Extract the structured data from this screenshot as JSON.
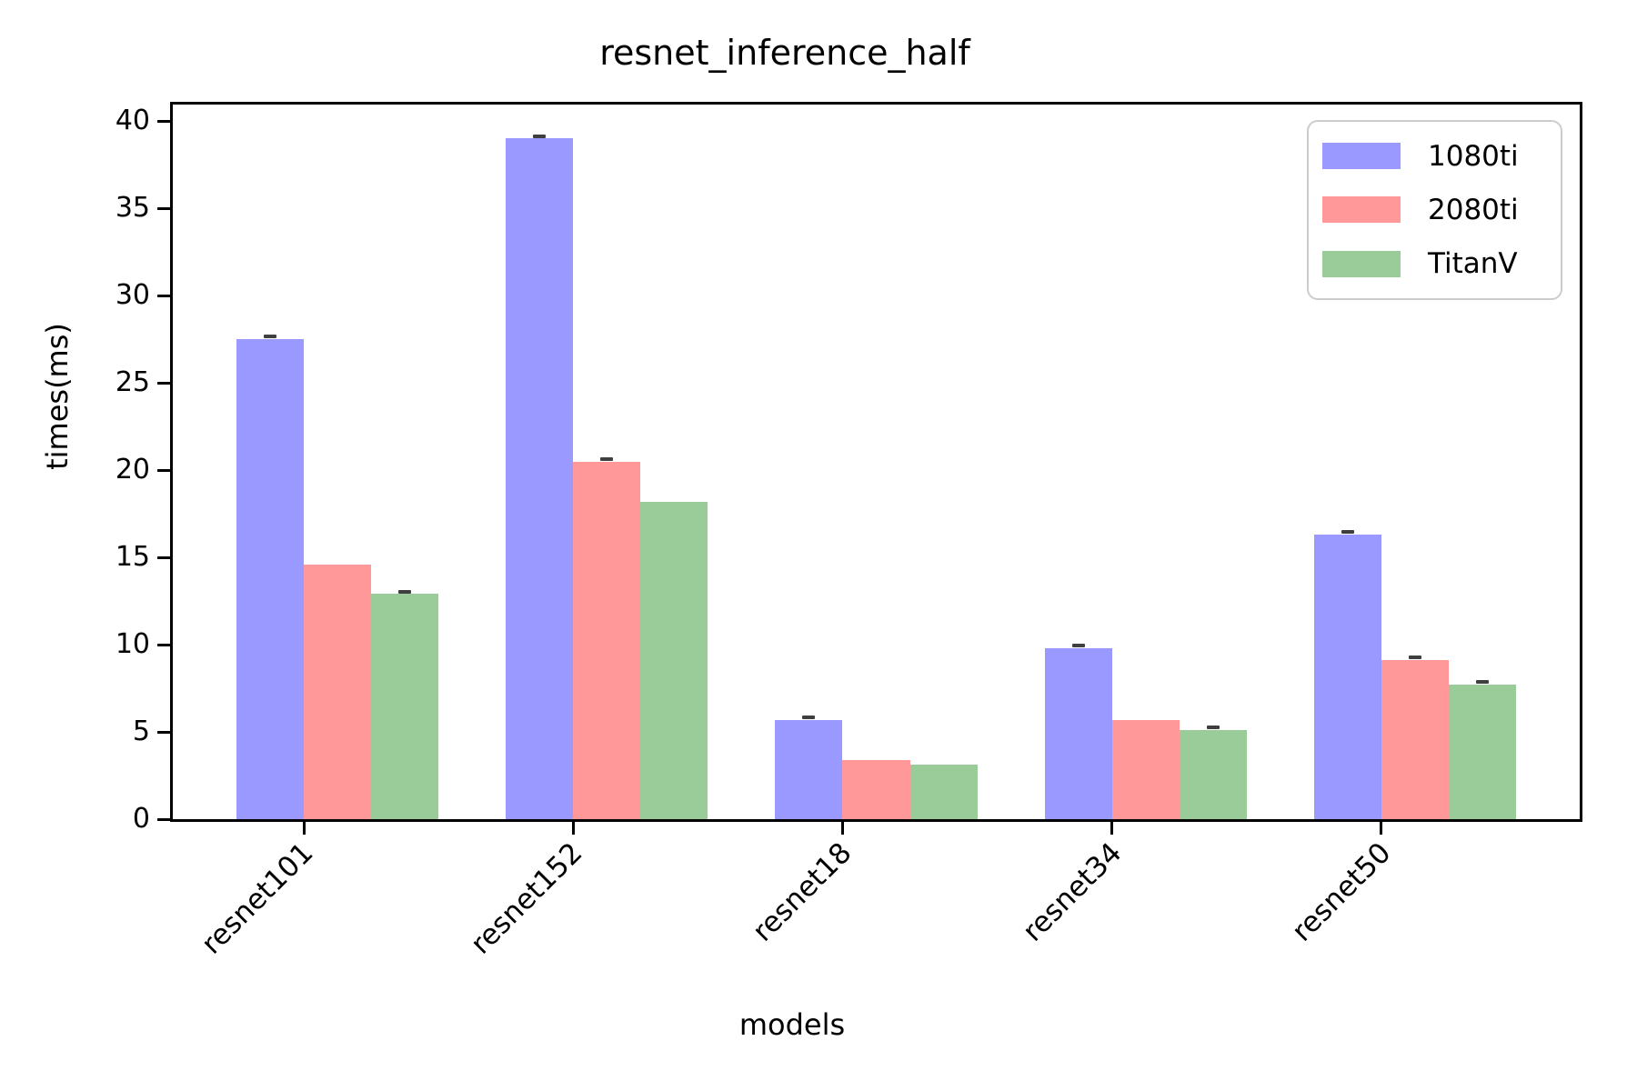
{
  "chart_data": {
    "type": "bar",
    "title": "resnet_inference_half",
    "xlabel": "models",
    "ylabel": "times(ms)",
    "categories": [
      "resnet101",
      "resnet152",
      "resnet18",
      "resnet34",
      "resnet50"
    ],
    "series": [
      {
        "name": "1080ti",
        "color": "#9999ff",
        "values": [
          27.5,
          39.0,
          5.7,
          9.8,
          16.3
        ],
        "errors": [
          0.15,
          0.15,
          0.15,
          0.15,
          0.15
        ]
      },
      {
        "name": "2080ti",
        "color": "#ff9999",
        "values": [
          14.6,
          20.5,
          3.4,
          5.7,
          9.1
        ],
        "errors": [
          0,
          0.15,
          0,
          0,
          0.15
        ]
      },
      {
        "name": "TitanV",
        "color": "#99cc99",
        "values": [
          12.9,
          18.2,
          3.1,
          5.1,
          7.7
        ],
        "errors": [
          0.15,
          0,
          0,
          0.15,
          0.15
        ]
      }
    ],
    "ylim": [
      0,
      40.95
    ],
    "yticks": [
      0,
      5,
      10,
      15,
      20,
      25,
      30,
      35,
      40
    ],
    "bar_width_units": 0.25,
    "xlim": [
      -0.4875,
      4.7375
    ],
    "grid": false,
    "legend_position": "upper right",
    "error_cap_color": "#3f3f3f",
    "axis_color": "#000000",
    "legend_border_color": "#cccccc"
  }
}
